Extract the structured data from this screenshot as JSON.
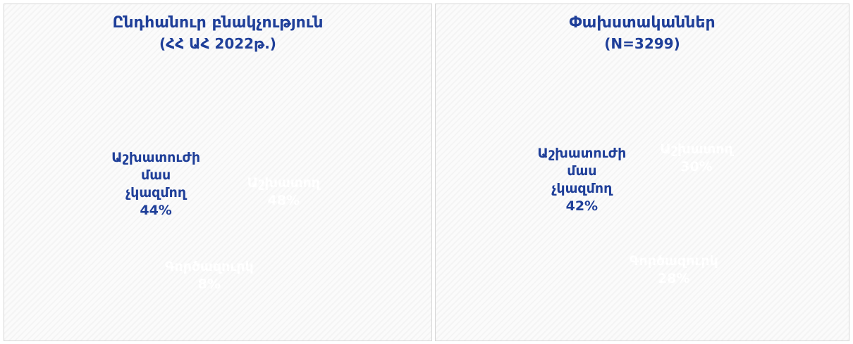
{
  "chart_data": [
    {
      "type": "pie",
      "title": "Ընդհանուր բնակչություն",
      "subtitle": "(ՀՀ ԱՀ 2022թ.)",
      "categories": [
        "Աշխատող",
        "Գործազուրկ",
        "Աշխատուժի մաս չկազմող"
      ],
      "values": [
        48,
        8,
        44
      ],
      "value_labels": [
        "48%",
        "8%",
        "44%"
      ],
      "colors": [
        "#3a79b1",
        "#4f95d2",
        "#a9c4e4"
      ]
    },
    {
      "type": "pie",
      "title": "Փախստականներ",
      "subtitle": "(N=3299)",
      "categories": [
        "Աշխատող",
        "Գործազուրկ",
        "Աշխատուժի մաս չկազմող"
      ],
      "values": [
        30,
        28,
        42
      ],
      "value_labels": [
        "30%",
        "28%",
        "42%"
      ],
      "colors": [
        "#3a79b1",
        "#4f95d2",
        "#a9c4e4"
      ]
    }
  ]
}
